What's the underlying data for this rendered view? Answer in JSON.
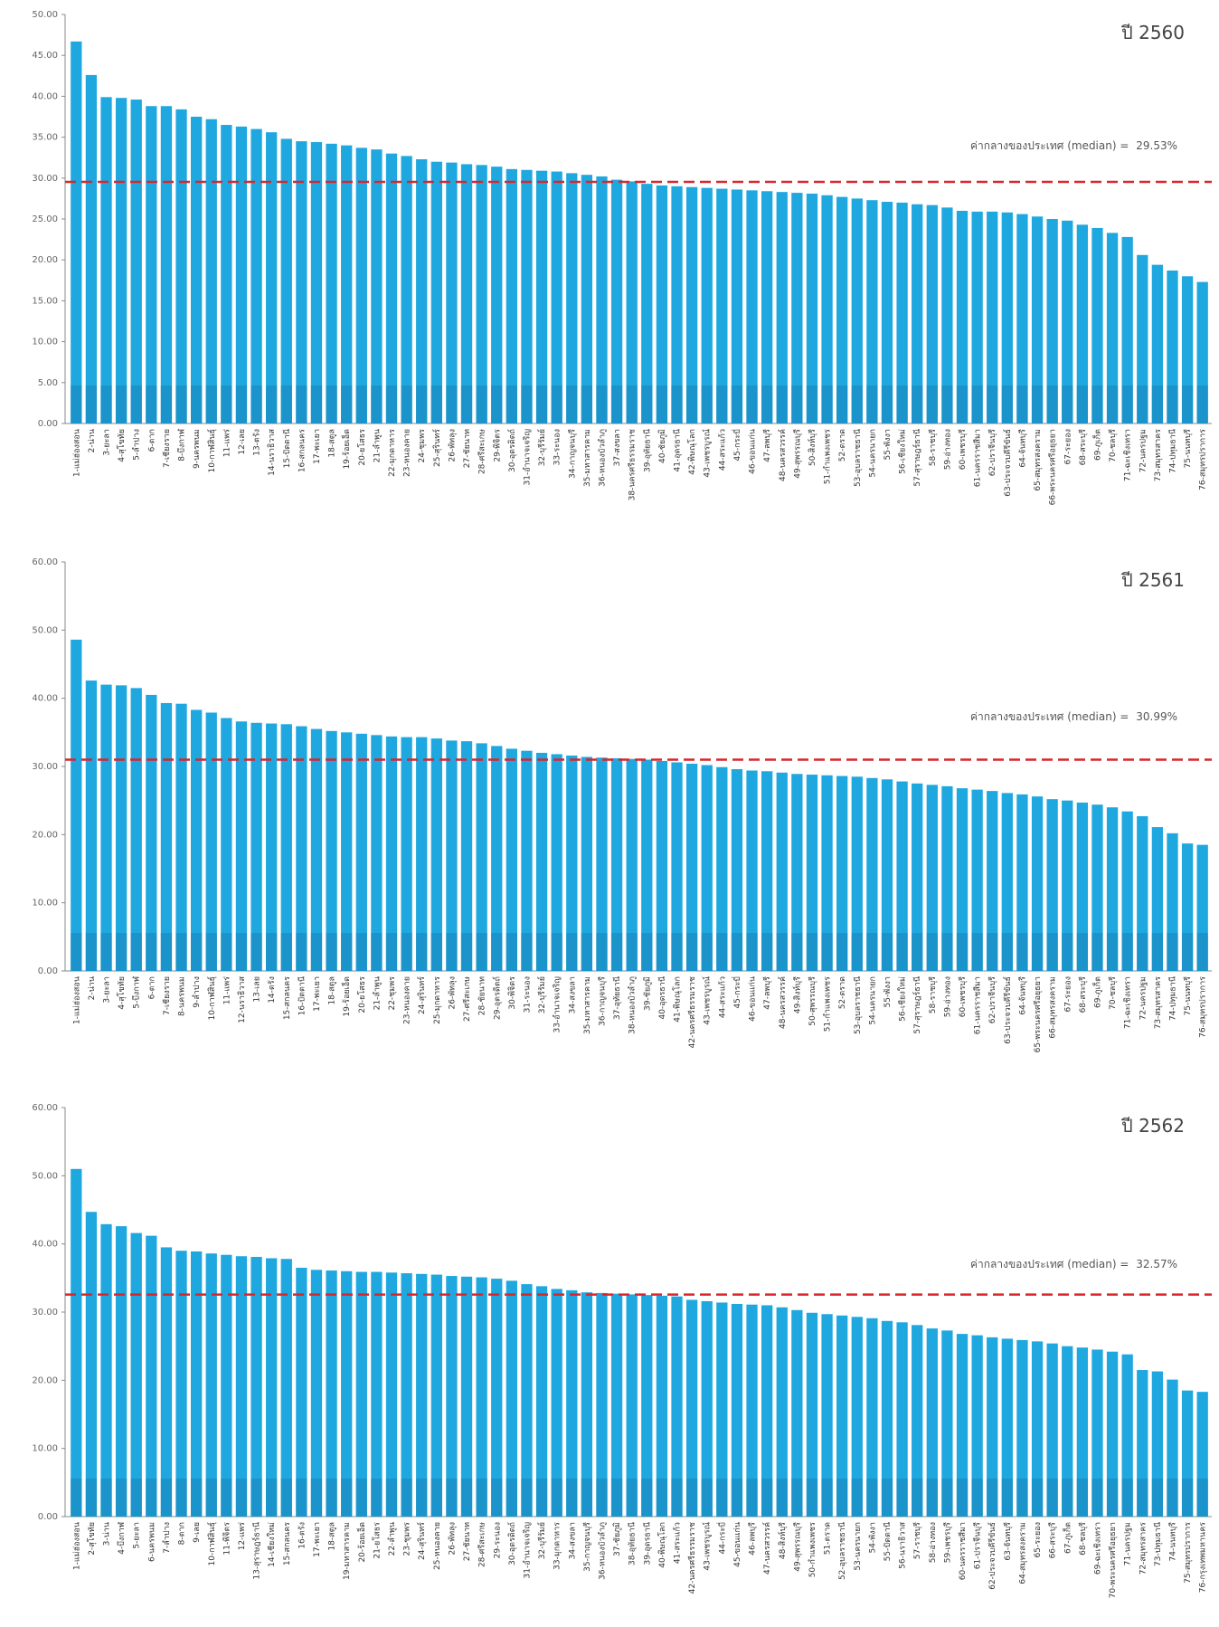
{
  "chart_data": [
    {
      "type": "bar",
      "panel_label": "ปี 2560",
      "ylim": [
        0,
        50
      ],
      "yticks": [
        "0.00",
        "5.00",
        "10.00",
        "15.00",
        "20.00",
        "25.00",
        "30.00",
        "35.00",
        "40.00",
        "45.00",
        "50.00"
      ],
      "median_label": "ค่ากลางของประเทศ (median) =",
      "median_value_text": "29.53%",
      "median": 29.53,
      "bar_color": "#1fa8e0",
      "median_color": "#d9262b",
      "categories": [
        "1-แม่ฮ่องสอน",
        "2-น่าน",
        "3-ยะลา",
        "4-สุโขทัย",
        "5-ลำปาง",
        "6-ตาก",
        "7-เชียงราย",
        "8-บึงกาฬ",
        "9-นครพนม",
        "10-กาฬสินธุ์",
        "11-แพร่",
        "12-เลย",
        "13-ตรัง",
        "14-นราธิวาส",
        "15-ปัตตานี",
        "16-สกลนคร",
        "17-พะเยา",
        "18-สตูล",
        "19-ร้อยเอ็ด",
        "20-ยโสธร",
        "21-ลำพูน",
        "22-มุกดาหาร",
        "23-หนองคาย",
        "24-ชุมพร",
        "25-สุรินทร์",
        "26-พัทลุง",
        "27-ชัยนาท",
        "28-ศรีสะเกษ",
        "29-พิจิตร",
        "30-อุตรดิตถ์",
        "31-อำนาจเจริญ",
        "32-บุรีรัมย์",
        "33-ระนอง",
        "34-กาญจนบุรี",
        "35-มหาสารคาม",
        "36-หนองบัวลำภู",
        "37-สงขลา",
        "38-นครศรีธรรมราช",
        "39-อุทัยธานี",
        "40-ชัยภูมิ",
        "41-อุดรธานี",
        "42-พิษณุโลก",
        "43-เพชรบูรณ์",
        "44-สระแก้ว",
        "45-กระบี่",
        "46-ขอนแก่น",
        "47-ลพบุรี",
        "48-นครสวรรค์",
        "49-สุพรรณบุรี",
        "50-สิงห์บุรี",
        "51-กำแพงเพชร",
        "52-ตราด",
        "53-อุบลราชธานี",
        "54-นครนายก",
        "55-พังงา",
        "56-เชียงใหม่",
        "57-สุราษฎร์ธานี",
        "58-ราชบุรี",
        "59-อ่างทอง",
        "60-เพชรบุรี",
        "61-นครราชสีมา",
        "62-ปราจีนบุรี",
        "63-ประจวบคีรีขันธ์",
        "64-จันทบุรี",
        "65-สมุทรสงคราม",
        "66-พระนครศรีอยุธยา",
        "67-ระยอง",
        "68-สระบุรี",
        "69-ภูเก็ต",
        "70-ชลบุรี",
        "71-ฉะเชิงเทรา",
        "72-นครปฐม",
        "73-สมุทรสาคร",
        "74-ปทุมธานี",
        "75-นนทบุรี",
        "76-สมุทรปราการ"
      ],
      "values": [
        46.7,
        42.6,
        39.9,
        39.8,
        39.6,
        38.8,
        38.8,
        38.4,
        37.5,
        37.2,
        36.5,
        36.3,
        36.0,
        35.6,
        34.8,
        34.5,
        34.4,
        34.2,
        34.0,
        33.7,
        33.5,
        33.0,
        32.7,
        32.3,
        32.0,
        31.9,
        31.7,
        31.6,
        31.4,
        31.1,
        31.0,
        30.9,
        30.8,
        30.6,
        30.4,
        30.2,
        29.8,
        29.6,
        29.3,
        29.1,
        29.0,
        28.9,
        28.8,
        28.7,
        28.6,
        28.5,
        28.4,
        28.3,
        28.2,
        28.1,
        27.9,
        27.7,
        27.5,
        27.3,
        27.1,
        27.0,
        26.8,
        26.7,
        26.4,
        26.0,
        25.9,
        25.9,
        25.8,
        25.6,
        25.3,
        25.0,
        24.8,
        24.3,
        23.9,
        23.3,
        22.8,
        20.6,
        19.4,
        18.7,
        18.0,
        17.3
      ]
    },
    {
      "type": "bar",
      "panel_label": "ปี 2561",
      "ylim": [
        0,
        60
      ],
      "yticks": [
        "0.00",
        "10.00",
        "20.00",
        "30.00",
        "40.00",
        "50.00",
        "60.00"
      ],
      "median_label": "ค่ากลางของประเทศ (median) =",
      "median_value_text": "30.99%",
      "median": 30.99,
      "bar_color": "#1fa8e0",
      "median_color": "#d9262b",
      "categories": [
        "1-แม่ฮ่องสอน",
        "2-น่าน",
        "3-ยะลา",
        "4-สุโขทัย",
        "5-บึงกาฬ",
        "6-ตาก",
        "7-เชียงราย",
        "8-นครพนม",
        "9-ลำปาง",
        "10-กาฬสินธุ์",
        "11-แพร่",
        "12-นราธิวาส",
        "13-เลย",
        "14-ตรัง",
        "15-สกลนคร",
        "16-ปัตตานี",
        "17-พะเยา",
        "18-สตูล",
        "19-ร้อยเอ็ด",
        "20-ยโสธร",
        "21-ลำพูน",
        "22-ชุมพร",
        "23-หนองคาย",
        "24-สุรินทร์",
        "25-มุกดาหาร",
        "26-พัทลุง",
        "27-ศรีสะเกษ",
        "28-ชัยนาท",
        "29-อุตรดิตถ์",
        "30-พิจิตร",
        "31-ระนอง",
        "32-บุรีรัมย์",
        "33-อำนาจเจริญ",
        "34-สงขลา",
        "35-มหาสารคาม",
        "36-กาญจนบุรี",
        "37-อุทัยธานี",
        "38-หนองบัวลำภู",
        "39-ชัยภูมิ",
        "40-อุดรธานี",
        "41-พิษณุโลก",
        "42-นครศรีธรรมราช",
        "43-เพชรบูรณ์",
        "44-สระแก้ว",
        "45-กระบี่",
        "46-ขอนแก่น",
        "47-ลพบุรี",
        "48-นครสวรรค์",
        "49-สิงห์บุรี",
        "50-สุพรรณบุรี",
        "51-กำแพงเพชร",
        "52-ตราด",
        "53-อุบลราชธานี",
        "54-นครนายก",
        "55-พังงา",
        "56-เชียงใหม่",
        "57-สุราษฎร์ธานี",
        "58-ราชบุรี",
        "59-อ่างทอง",
        "60-เพชรบุรี",
        "61-นครราชสีมา",
        "62-ปราจีนบุรี",
        "63-ประจวบคีรีขันธ์",
        "64-จันทบุรี",
        "65-พระนครศรีอยุธยา",
        "66-สมุทรสงคราม",
        "67-ระยอง",
        "68-สระบุรี",
        "69-ภูเก็ต",
        "70-ชลบุรี",
        "71-ฉะเชิงเทรา",
        "72-นครปฐม",
        "73-สมุทรสาคร",
        "74-ปทุมธานี",
        "75-นนทบุรี",
        "76-สมุทรปราการ"
      ],
      "values": [
        48.6,
        42.6,
        42.0,
        41.9,
        41.5,
        40.5,
        39.3,
        39.2,
        38.3,
        37.9,
        37.1,
        36.6,
        36.4,
        36.3,
        36.2,
        35.9,
        35.5,
        35.2,
        35.0,
        34.8,
        34.6,
        34.4,
        34.3,
        34.3,
        34.1,
        33.8,
        33.7,
        33.4,
        33.0,
        32.6,
        32.3,
        32.0,
        31.8,
        31.6,
        31.4,
        31.3,
        31.2,
        31.1,
        31.0,
        30.8,
        30.6,
        30.4,
        30.2,
        29.9,
        29.6,
        29.4,
        29.3,
        29.1,
        28.9,
        28.8,
        28.7,
        28.6,
        28.5,
        28.3,
        28.1,
        27.8,
        27.5,
        27.3,
        27.1,
        26.8,
        26.6,
        26.4,
        26.1,
        25.9,
        25.6,
        25.2,
        25.0,
        24.7,
        24.4,
        24.0,
        23.4,
        22.7,
        21.1,
        20.2,
        18.7,
        18.5
      ]
    },
    {
      "type": "bar",
      "panel_label": "ปี 2562",
      "ylim": [
        0,
        60
      ],
      "yticks": [
        "0.00",
        "10.00",
        "20.00",
        "30.00",
        "40.00",
        "50.00",
        "60.00"
      ],
      "median_label": "ค่ากลางของประเทศ (median) =",
      "median_value_text": "32.57%",
      "median": 32.57,
      "bar_color": "#1fa8e0",
      "median_color": "#d9262b",
      "categories": [
        "1-แม่ฮ่องสอน",
        "2-สุโขทัย",
        "3-น่าน",
        "4-บึงกาฬ",
        "5-ยะลา",
        "6-นครพนม",
        "7-ลำปาง",
        "8-ตาก",
        "9-เลย",
        "10-กาฬสินธุ์",
        "11-พิจิตร",
        "12-แพร่",
        "13-สุราษฎร์ธานี",
        "14-เชียงใหม่",
        "15-สกลนคร",
        "16-ตรัง",
        "17-พะเยา",
        "18-สตูล",
        "19-มหาสารคาม",
        "20-ร้อยเอ็ด",
        "21-ยโสธร",
        "22-ลำพูน",
        "23-ชุมพร",
        "24-สุรินทร์",
        "25-หนองคาย",
        "26-พัทลุง",
        "27-ชัยนาท",
        "28-ศรีสะเกษ",
        "29-ระนอง",
        "30-อุตรดิตถ์",
        "31-อำนาจเจริญ",
        "32-บุรีรัมย์",
        "33-มุกดาหาร",
        "34-สงขลา",
        "35-กาญจนบุรี",
        "36-หนองบัวลำภู",
        "37-ชัยภูมิ",
        "38-อุทัยธานี",
        "39-อุดรธานี",
        "40-พิษณุโลก",
        "41-สระแก้ว",
        "42-นครศรีธรรมราช",
        "43-เพชรบูรณ์",
        "44-กระบี่",
        "45-ขอนแก่น",
        "46-ลพบุรี",
        "47-นครสวรรค์",
        "48-สิงห์บุรี",
        "49-สุพรรณบุรี",
        "50-กำแพงเพชร",
        "51-ตราด",
        "52-อุบลราชธานี",
        "53-นครนายก",
        "54-พังงา",
        "55-ปัตตานี",
        "56-นราธิวาส",
        "57-ราชบุรี",
        "58-อ่างทอง",
        "59-เพชรบุรี",
        "60-นครราชสีมา",
        "61-ปราจีนบุรี",
        "62-ประจวบคีรีขันธ์",
        "63-จันทบุรี",
        "64-สมุทรสงคราม",
        "65-ระยอง",
        "66-สระบุรี",
        "67-ภูเก็ต",
        "68-ชลบุรี",
        "69-ฉะเชิงเทรา",
        "70-พระนครศรีอยุธยา",
        "71-นครปฐม",
        "72-สมุทรสาคร",
        "73-ปทุมธานี",
        "74-นนทบุรี",
        "75-สมุทรปราการ",
        "76-กรุงเทพมหานคร"
      ],
      "values": [
        51.0,
        44.7,
        42.9,
        42.6,
        41.6,
        41.2,
        39.5,
        39.0,
        38.9,
        38.6,
        38.4,
        38.2,
        38.1,
        37.9,
        37.8,
        36.5,
        36.2,
        36.1,
        36.0,
        35.9,
        35.9,
        35.8,
        35.7,
        35.6,
        35.5,
        35.3,
        35.2,
        35.1,
        34.9,
        34.6,
        34.1,
        33.8,
        33.4,
        33.2,
        32.9,
        32.8,
        32.7,
        32.6,
        32.5,
        32.4,
        32.3,
        31.8,
        31.6,
        31.4,
        31.2,
        31.1,
        31.0,
        30.7,
        30.3,
        29.9,
        29.7,
        29.5,
        29.3,
        29.1,
        28.7,
        28.5,
        28.1,
        27.6,
        27.3,
        26.8,
        26.6,
        26.3,
        26.1,
        25.9,
        25.7,
        25.4,
        25.0,
        24.8,
        24.5,
        24.2,
        23.8,
        21.5,
        21.3,
        20.1,
        18.5,
        18.3
      ]
    }
  ]
}
